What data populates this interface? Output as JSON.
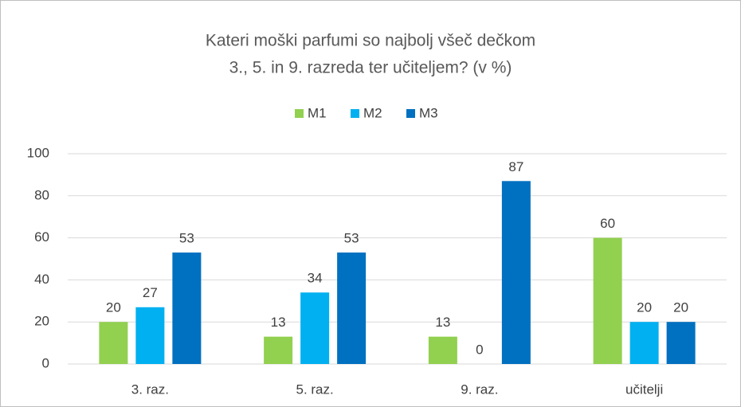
{
  "chart_data": {
    "type": "bar",
    "title": [
      "Kateri moški parfumi so najbolj všeč dečkom",
      "3., 5. in 9. razreda ter učiteljem? (v %)"
    ],
    "categories": [
      "3. raz.",
      "5. raz.",
      "9. raz.",
      "učitelji"
    ],
    "series": [
      {
        "name": "M1",
        "color": "#92d050",
        "values": [
          20,
          13,
          13,
          60
        ]
      },
      {
        "name": "M2",
        "color": "#00b0f0",
        "values": [
          27,
          34,
          0,
          20
        ]
      },
      {
        "name": "M3",
        "color": "#0070c0",
        "values": [
          53,
          53,
          87,
          20
        ]
      }
    ],
    "ylim": [
      0,
      100
    ],
    "yticks": [
      0,
      20,
      40,
      60,
      80,
      100
    ],
    "grid": true,
    "legend": "top"
  }
}
